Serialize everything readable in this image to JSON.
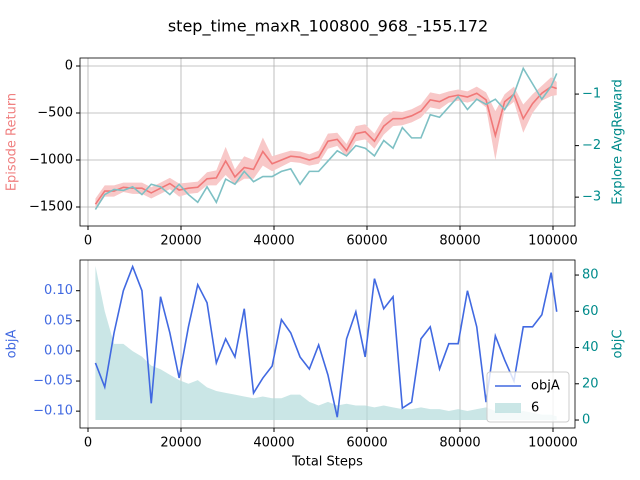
{
  "title": "step_time_maxR_100800_968_-155.172",
  "chart_data": [
    {
      "type": "line",
      "ylabel": "Episode Return",
      "y2label": "Explore AvgReward",
      "ylabel_color": "#f08080",
      "ytick_color": "#000000",
      "y2_color": "#008b8b",
      "grid": "both",
      "x": [
        1600,
        3600,
        5600,
        7600,
        9600,
        11600,
        13600,
        15600,
        17600,
        19600,
        21600,
        23600,
        25600,
        27600,
        29600,
        31600,
        33600,
        35600,
        37600,
        39600,
        41600,
        43600,
        45600,
        47600,
        49600,
        51600,
        53600,
        55600,
        57600,
        59600,
        61600,
        63600,
        65600,
        67600,
        69600,
        71600,
        73600,
        75600,
        77600,
        79600,
        81600,
        83600,
        85600,
        87600,
        89600,
        91600,
        93600,
        95600,
        97600,
        99600,
        100800
      ],
      "xlim": [
        -1720,
        104730
      ],
      "xticks": [
        0,
        20000,
        40000,
        60000,
        80000,
        100000
      ],
      "ylim": [
        -1702,
        85
      ],
      "yticks": [
        {
          "value": -1500,
          "label": "−1500"
        },
        {
          "value": -1000,
          "label": "−1000"
        },
        {
          "value": -500,
          "label": "−500"
        },
        0
      ],
      "y2lim": [
        -3.56,
        -0.3
      ],
      "y2ticks": [
        {
          "value": -3,
          "label": "−3"
        },
        {
          "value": -2,
          "label": "−2"
        },
        {
          "value": -1,
          "label": "−1"
        }
      ],
      "series": [
        {
          "color": "#f07878",
          "values": [
            -1470,
            -1330,
            -1330,
            -1290,
            -1300,
            -1300,
            -1350,
            -1300,
            -1250,
            -1320,
            -1300,
            -1290,
            -1200,
            -1190,
            -1010,
            -1180,
            -1080,
            -1100,
            -910,
            -1040,
            -1000,
            -960,
            -970,
            -1000,
            -970,
            -800,
            -780,
            -900,
            -720,
            -700,
            -800,
            -640,
            -560,
            -560,
            -530,
            -480,
            -360,
            -380,
            -330,
            -310,
            -330,
            -290,
            -360,
            -740,
            -380,
            -300,
            -560,
            -400,
            -290,
            -220,
            -240
          ],
          "lower": [
            -1530,
            -1390,
            -1390,
            -1340,
            -1360,
            -1360,
            -1410,
            -1360,
            -1310,
            -1390,
            -1360,
            -1350,
            -1270,
            -1270,
            -1160,
            -1260,
            -1200,
            -1200,
            -1060,
            -1120,
            -1070,
            -1020,
            -1030,
            -1060,
            -1040,
            -880,
            -850,
            -970,
            -800,
            -780,
            -880,
            -730,
            -640,
            -630,
            -600,
            -550,
            -440,
            -460,
            -390,
            -370,
            -390,
            -360,
            -440,
            -1000,
            -460,
            -380,
            -710,
            -500,
            -370,
            -320,
            -310
          ],
          "upper": [
            -1410,
            -1270,
            -1270,
            -1240,
            -1240,
            -1240,
            -1290,
            -1240,
            -1190,
            -1250,
            -1240,
            -1230,
            -1130,
            -1110,
            -860,
            -1100,
            -960,
            -1000,
            -760,
            -960,
            -930,
            -900,
            -910,
            -940,
            -900,
            -720,
            -710,
            -830,
            -640,
            -620,
            -720,
            -550,
            -480,
            -490,
            -460,
            -410,
            -280,
            -300,
            -270,
            -250,
            -270,
            -220,
            -280,
            -480,
            -300,
            -220,
            -410,
            -300,
            -210,
            -120,
            -170
          ],
          "band_color": "#f8c8c8"
        },
        {
          "color": "#7ec0c4",
          "axis": "y2",
          "values": [
            -3.24,
            -2.95,
            -2.85,
            -2.87,
            -2.8,
            -2.95,
            -2.75,
            -2.8,
            -2.95,
            -2.75,
            -2.95,
            -3.1,
            -2.8,
            -3.1,
            -2.65,
            -2.75,
            -2.5,
            -2.7,
            -2.6,
            -2.6,
            -2.5,
            -2.45,
            -2.75,
            -2.5,
            -2.5,
            -2.3,
            -2.1,
            -2.2,
            -2.0,
            -2.05,
            -2.2,
            -1.9,
            -2.05,
            -1.65,
            -1.85,
            -1.85,
            -1.4,
            -1.45,
            -1.25,
            -1.05,
            -1.3,
            -1.1,
            -1.2,
            -1.1,
            -1.3,
            -1.0,
            -0.5,
            -0.8,
            -1.1,
            -0.85,
            -0.6
          ]
        }
      ]
    },
    {
      "type": "line",
      "xlabel": "Total Steps",
      "ylabel": "objA",
      "y2label": "objC",
      "ylabel_color": "#4169e1",
      "ytick_color": "#4169e1",
      "y2_color": "#008b8b",
      "grid": "x",
      "legend": "lower right",
      "x": [
        1600,
        3600,
        5600,
        7600,
        9600,
        11600,
        13600,
        15600,
        17600,
        19600,
        21600,
        23600,
        25600,
        27600,
        29600,
        31600,
        33600,
        35600,
        37600,
        39600,
        41600,
        43600,
        45600,
        47600,
        49600,
        51600,
        53600,
        55600,
        57600,
        59600,
        61600,
        63600,
        65600,
        67600,
        69600,
        71600,
        73600,
        75600,
        77600,
        79600,
        81600,
        83600,
        85600,
        87600,
        89600,
        91600,
        93600,
        95600,
        97600,
        99600,
        100800
      ],
      "xlim": [
        -1720,
        104730
      ],
      "xticks": [
        0,
        20000,
        40000,
        60000,
        80000,
        100000
      ],
      "ylim": [
        -0.128,
        0.151
      ],
      "yticks": [
        {
          "value": -0.1,
          "label": "−0.10"
        },
        {
          "value": -0.05,
          "label": "−0.05"
        },
        {
          "value": 0,
          "label": "0.00"
        },
        {
          "value": 0.05,
          "label": "0.05"
        },
        {
          "value": 0.1,
          "label": "0.10"
        }
      ],
      "y2lim": [
        -4.4,
        88.3
      ],
      "y2ticks": [
        0,
        20,
        40,
        60,
        80
      ],
      "series": [
        {
          "name": "6",
          "color": "#b4dcdc",
          "axis": "y2",
          "fill": true,
          "values": [
            85,
            60,
            42,
            42,
            38,
            35,
            30,
            28,
            25,
            22,
            20,
            22,
            18,
            16,
            15,
            14,
            13,
            12,
            13,
            12,
            12,
            14,
            14,
            10,
            8,
            10,
            8,
            9,
            8,
            8,
            7,
            8,
            7,
            6,
            6,
            7,
            6,
            6,
            5,
            6,
            5,
            6,
            7,
            5,
            4,
            4,
            5,
            4,
            3,
            3,
            2
          ]
        },
        {
          "name": "objA",
          "color": "#4169e1",
          "values": [
            -0.02,
            -0.06,
            0.03,
            0.1,
            0.14,
            0.1,
            -0.087,
            0.09,
            0.03,
            -0.045,
            0.04,
            0.11,
            0.08,
            -0.02,
            0.02,
            -0.01,
            0.07,
            -0.07,
            -0.045,
            -0.025,
            0.052,
            0.03,
            -0.01,
            -0.03,
            0.01,
            -0.04,
            -0.11,
            0.02,
            0.065,
            -0.01,
            0.12,
            0.07,
            0.09,
            -0.095,
            -0.085,
            0.02,
            0.04,
            -0.03,
            0.012,
            0.012,
            0.1,
            0.04,
            -0.085,
            0.025,
            -0.015,
            -0.05,
            0.04,
            0.04,
            0.06,
            0.13,
            0.065
          ]
        }
      ]
    }
  ]
}
